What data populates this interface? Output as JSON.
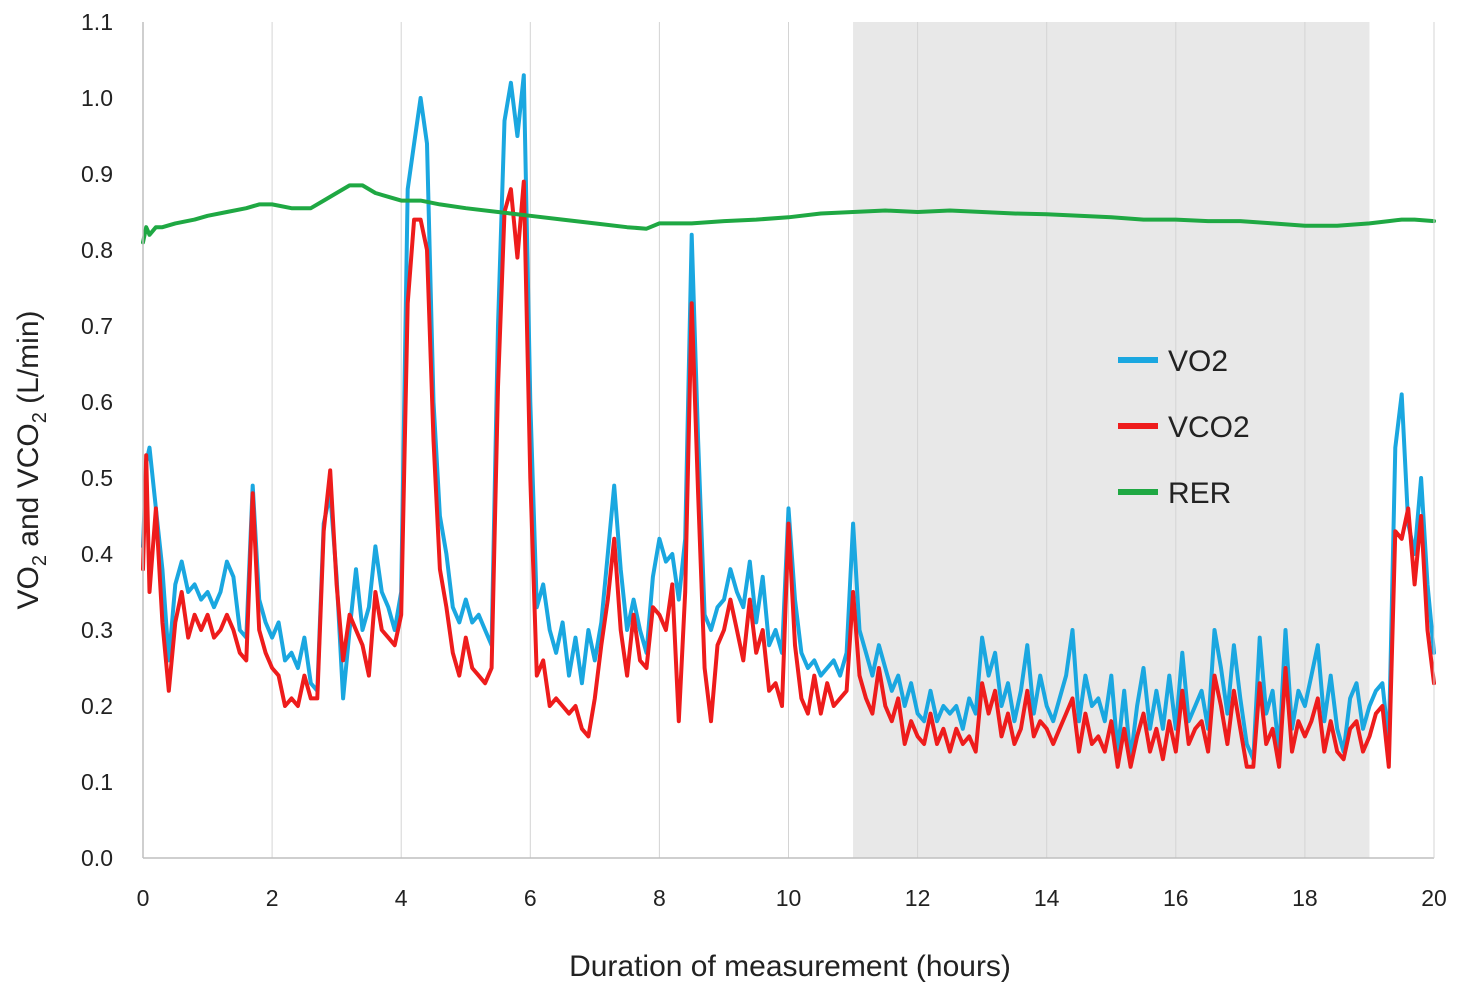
{
  "chart_data": {
    "type": "line",
    "title": "",
    "xlabel": "Duration of measurement (hours)",
    "ylabel_main": "VO",
    "ylabel_sub1": "2",
    "ylabel_mid": " and VCO",
    "ylabel_sub2": "2",
    "ylabel_end": " (L/min)",
    "xlim": [
      0,
      20
    ],
    "ylim": [
      0,
      1.1
    ],
    "x_ticks": [
      "0",
      "2",
      "4",
      "6",
      "8",
      "10",
      "12",
      "14",
      "16",
      "18",
      "20"
    ],
    "y_ticks": [
      "0.0",
      "0.1",
      "0.2",
      "0.3",
      "0.4",
      "0.5",
      "0.6",
      "0.7",
      "0.8",
      "0.9",
      "1.0",
      "1.1"
    ],
    "shaded_region": {
      "x_start": 11,
      "x_end": 19,
      "color": "#e8e8e8"
    },
    "legend_position": "right-center",
    "series": [
      {
        "name": "VO2",
        "color": "#1aa7e0",
        "x": [
          0,
          0.05,
          0.1,
          0.2,
          0.3,
          0.4,
          0.5,
          0.6,
          0.7,
          0.8,
          0.9,
          1.0,
          1.1,
          1.2,
          1.3,
          1.4,
          1.5,
          1.6,
          1.7,
          1.8,
          1.9,
          2.0,
          2.1,
          2.2,
          2.3,
          2.4,
          2.5,
          2.6,
          2.7,
          2.8,
          2.9,
          3.0,
          3.1,
          3.2,
          3.3,
          3.4,
          3.5,
          3.6,
          3.7,
          3.8,
          3.9,
          4.0,
          4.1,
          4.2,
          4.3,
          4.4,
          4.5,
          4.6,
          4.7,
          4.8,
          4.9,
          5.0,
          5.1,
          5.2,
          5.3,
          5.4,
          5.5,
          5.6,
          5.7,
          5.8,
          5.9,
          6.0,
          6.1,
          6.2,
          6.3,
          6.4,
          6.5,
          6.6,
          6.7,
          6.8,
          6.9,
          7.0,
          7.1,
          7.2,
          7.3,
          7.4,
          7.5,
          7.6,
          7.7,
          7.8,
          7.9,
          8.0,
          8.1,
          8.2,
          8.3,
          8.4,
          8.5,
          8.6,
          8.7,
          8.8,
          8.9,
          9.0,
          9.1,
          9.2,
          9.3,
          9.4,
          9.5,
          9.6,
          9.7,
          9.8,
          9.9,
          10.0,
          10.1,
          10.2,
          10.3,
          10.4,
          10.5,
          10.6,
          10.7,
          10.8,
          10.9,
          11.0,
          11.1,
          11.2,
          11.3,
          11.4,
          11.5,
          11.6,
          11.7,
          11.8,
          11.9,
          12.0,
          12.1,
          12.2,
          12.3,
          12.4,
          12.5,
          12.6,
          12.7,
          12.8,
          12.9,
          13.0,
          13.1,
          13.2,
          13.3,
          13.4,
          13.5,
          13.6,
          13.7,
          13.8,
          13.9,
          14.0,
          14.1,
          14.2,
          14.3,
          14.4,
          14.5,
          14.6,
          14.7,
          14.8,
          14.9,
          15.0,
          15.1,
          15.2,
          15.3,
          15.4,
          15.5,
          15.6,
          15.7,
          15.8,
          15.9,
          16.0,
          16.1,
          16.2,
          16.3,
          16.4,
          16.5,
          16.6,
          16.7,
          16.8,
          16.9,
          17.0,
          17.1,
          17.2,
          17.3,
          17.4,
          17.5,
          17.6,
          17.7,
          17.8,
          17.9,
          18.0,
          18.1,
          18.2,
          18.3,
          18.4,
          18.5,
          18.6,
          18.7,
          18.8,
          18.9,
          19.0,
          19.1,
          19.2,
          19.3,
          19.4,
          19.5,
          19.6,
          19.7,
          19.8,
          19.9,
          20.0
        ],
        "y": [
          0.41,
          0.52,
          0.54,
          0.46,
          0.38,
          0.26,
          0.36,
          0.39,
          0.35,
          0.36,
          0.34,
          0.35,
          0.33,
          0.35,
          0.39,
          0.37,
          0.3,
          0.29,
          0.49,
          0.34,
          0.31,
          0.29,
          0.31,
          0.26,
          0.27,
          0.25,
          0.29,
          0.23,
          0.22,
          0.44,
          0.48,
          0.37,
          0.21,
          0.3,
          0.38,
          0.3,
          0.33,
          0.41,
          0.35,
          0.33,
          0.3,
          0.35,
          0.88,
          0.94,
          1.0,
          0.94,
          0.6,
          0.45,
          0.4,
          0.33,
          0.31,
          0.34,
          0.31,
          0.32,
          0.3,
          0.28,
          0.7,
          0.97,
          1.02,
          0.95,
          1.03,
          0.6,
          0.33,
          0.36,
          0.3,
          0.27,
          0.31,
          0.24,
          0.29,
          0.23,
          0.3,
          0.26,
          0.31,
          0.4,
          0.49,
          0.38,
          0.3,
          0.34,
          0.3,
          0.27,
          0.37,
          0.42,
          0.39,
          0.4,
          0.34,
          0.42,
          0.82,
          0.55,
          0.32,
          0.3,
          0.33,
          0.34,
          0.38,
          0.35,
          0.33,
          0.39,
          0.31,
          0.37,
          0.28,
          0.3,
          0.27,
          0.46,
          0.34,
          0.27,
          0.25,
          0.26,
          0.24,
          0.25,
          0.26,
          0.24,
          0.27,
          0.44,
          0.3,
          0.27,
          0.24,
          0.28,
          0.25,
          0.22,
          0.24,
          0.2,
          0.23,
          0.19,
          0.18,
          0.22,
          0.18,
          0.2,
          0.19,
          0.2,
          0.17,
          0.21,
          0.19,
          0.29,
          0.24,
          0.27,
          0.2,
          0.23,
          0.18,
          0.22,
          0.28,
          0.19,
          0.24,
          0.2,
          0.18,
          0.21,
          0.24,
          0.3,
          0.18,
          0.24,
          0.2,
          0.21,
          0.18,
          0.24,
          0.14,
          0.22,
          0.13,
          0.2,
          0.25,
          0.17,
          0.22,
          0.17,
          0.24,
          0.17,
          0.27,
          0.18,
          0.2,
          0.22,
          0.17,
          0.3,
          0.25,
          0.19,
          0.28,
          0.21,
          0.15,
          0.13,
          0.29,
          0.19,
          0.22,
          0.14,
          0.3,
          0.17,
          0.22,
          0.2,
          0.24,
          0.28,
          0.18,
          0.24,
          0.17,
          0.14,
          0.21,
          0.23,
          0.17,
          0.2,
          0.22,
          0.23,
          0.15,
          0.54,
          0.61,
          0.44,
          0.4,
          0.5,
          0.36,
          0.27
        ]
      },
      {
        "name": "VCO2",
        "color": "#ee1c1c",
        "x": [
          0,
          0.05,
          0.1,
          0.2,
          0.3,
          0.4,
          0.5,
          0.6,
          0.7,
          0.8,
          0.9,
          1.0,
          1.1,
          1.2,
          1.3,
          1.4,
          1.5,
          1.6,
          1.7,
          1.8,
          1.9,
          2.0,
          2.1,
          2.2,
          2.3,
          2.4,
          2.5,
          2.6,
          2.7,
          2.8,
          2.9,
          3.0,
          3.1,
          3.2,
          3.3,
          3.4,
          3.5,
          3.6,
          3.7,
          3.8,
          3.9,
          4.0,
          4.1,
          4.2,
          4.3,
          4.4,
          4.5,
          4.6,
          4.7,
          4.8,
          4.9,
          5.0,
          5.1,
          5.2,
          5.3,
          5.4,
          5.5,
          5.6,
          5.7,
          5.8,
          5.9,
          6.0,
          6.1,
          6.2,
          6.3,
          6.4,
          6.5,
          6.6,
          6.7,
          6.8,
          6.9,
          7.0,
          7.1,
          7.2,
          7.3,
          7.4,
          7.5,
          7.6,
          7.7,
          7.8,
          7.9,
          8.0,
          8.1,
          8.2,
          8.3,
          8.4,
          8.5,
          8.6,
          8.7,
          8.8,
          8.9,
          9.0,
          9.1,
          9.2,
          9.3,
          9.4,
          9.5,
          9.6,
          9.7,
          9.8,
          9.9,
          10.0,
          10.1,
          10.2,
          10.3,
          10.4,
          10.5,
          10.6,
          10.7,
          10.8,
          10.9,
          11.0,
          11.1,
          11.2,
          11.3,
          11.4,
          11.5,
          11.6,
          11.7,
          11.8,
          11.9,
          12.0,
          12.1,
          12.2,
          12.3,
          12.4,
          12.5,
          12.6,
          12.7,
          12.8,
          12.9,
          13.0,
          13.1,
          13.2,
          13.3,
          13.4,
          13.5,
          13.6,
          13.7,
          13.8,
          13.9,
          14.0,
          14.1,
          14.2,
          14.3,
          14.4,
          14.5,
          14.6,
          14.7,
          14.8,
          14.9,
          15.0,
          15.1,
          15.2,
          15.3,
          15.4,
          15.5,
          15.6,
          15.7,
          15.8,
          15.9,
          16.0,
          16.1,
          16.2,
          16.3,
          16.4,
          16.5,
          16.6,
          16.7,
          16.8,
          16.9,
          17.0,
          17.1,
          17.2,
          17.3,
          17.4,
          17.5,
          17.6,
          17.7,
          17.8,
          17.9,
          18.0,
          18.1,
          18.2,
          18.3,
          18.4,
          18.5,
          18.6,
          18.7,
          18.8,
          18.9,
          19.0,
          19.1,
          19.2,
          19.3,
          19.4,
          19.5,
          19.6,
          19.7,
          19.8,
          19.9,
          20.0
        ],
        "y": [
          0.38,
          0.53,
          0.35,
          0.46,
          0.31,
          0.22,
          0.31,
          0.35,
          0.29,
          0.32,
          0.3,
          0.32,
          0.29,
          0.3,
          0.32,
          0.3,
          0.27,
          0.26,
          0.48,
          0.3,
          0.27,
          0.25,
          0.24,
          0.2,
          0.21,
          0.2,
          0.24,
          0.21,
          0.21,
          0.43,
          0.51,
          0.36,
          0.26,
          0.32,
          0.3,
          0.28,
          0.24,
          0.35,
          0.3,
          0.29,
          0.28,
          0.32,
          0.73,
          0.84,
          0.84,
          0.8,
          0.55,
          0.38,
          0.33,
          0.27,
          0.24,
          0.29,
          0.25,
          0.24,
          0.23,
          0.25,
          0.62,
          0.85,
          0.88,
          0.79,
          0.89,
          0.5,
          0.24,
          0.26,
          0.2,
          0.21,
          0.2,
          0.19,
          0.2,
          0.17,
          0.16,
          0.21,
          0.28,
          0.34,
          0.42,
          0.3,
          0.24,
          0.32,
          0.26,
          0.25,
          0.33,
          0.32,
          0.3,
          0.36,
          0.18,
          0.35,
          0.73,
          0.48,
          0.25,
          0.18,
          0.28,
          0.3,
          0.34,
          0.3,
          0.26,
          0.34,
          0.27,
          0.3,
          0.22,
          0.23,
          0.2,
          0.44,
          0.28,
          0.21,
          0.19,
          0.24,
          0.19,
          0.23,
          0.2,
          0.21,
          0.22,
          0.35,
          0.24,
          0.21,
          0.19,
          0.25,
          0.2,
          0.18,
          0.21,
          0.15,
          0.18,
          0.16,
          0.15,
          0.19,
          0.15,
          0.17,
          0.14,
          0.17,
          0.15,
          0.16,
          0.14,
          0.23,
          0.19,
          0.22,
          0.16,
          0.19,
          0.15,
          0.17,
          0.22,
          0.16,
          0.18,
          0.17,
          0.15,
          0.17,
          0.19,
          0.21,
          0.14,
          0.19,
          0.15,
          0.16,
          0.14,
          0.18,
          0.12,
          0.17,
          0.12,
          0.16,
          0.19,
          0.14,
          0.17,
          0.13,
          0.18,
          0.14,
          0.22,
          0.15,
          0.17,
          0.18,
          0.14,
          0.24,
          0.2,
          0.15,
          0.22,
          0.17,
          0.12,
          0.12,
          0.23,
          0.15,
          0.17,
          0.12,
          0.25,
          0.14,
          0.18,
          0.16,
          0.18,
          0.21,
          0.14,
          0.18,
          0.14,
          0.13,
          0.17,
          0.18,
          0.14,
          0.16,
          0.19,
          0.2,
          0.12,
          0.43,
          0.42,
          0.46,
          0.36,
          0.45,
          0.3,
          0.23
        ]
      },
      {
        "name": "RER",
        "color": "#1fa843",
        "x": [
          0,
          0.05,
          0.1,
          0.2,
          0.3,
          0.5,
          0.8,
          1.0,
          1.3,
          1.6,
          1.8,
          2.0,
          2.3,
          2.6,
          2.8,
          3.0,
          3.2,
          3.4,
          3.6,
          3.8,
          4.0,
          4.3,
          4.6,
          5.0,
          5.5,
          6.0,
          6.5,
          7.0,
          7.5,
          7.8,
          8.0,
          8.5,
          9.0,
          9.5,
          10.0,
          10.5,
          11.0,
          11.5,
          12.0,
          12.5,
          13.0,
          13.5,
          14.0,
          14.5,
          15.0,
          15.5,
          16.0,
          16.5,
          17.0,
          17.5,
          18.0,
          18.5,
          19.0,
          19.3,
          19.5,
          19.7,
          20.0
        ],
        "y": [
          0.81,
          0.83,
          0.82,
          0.83,
          0.83,
          0.835,
          0.84,
          0.845,
          0.85,
          0.855,
          0.86,
          0.86,
          0.855,
          0.855,
          0.865,
          0.875,
          0.885,
          0.885,
          0.875,
          0.87,
          0.865,
          0.865,
          0.86,
          0.855,
          0.85,
          0.845,
          0.84,
          0.835,
          0.83,
          0.828,
          0.835,
          0.835,
          0.838,
          0.84,
          0.843,
          0.848,
          0.85,
          0.852,
          0.85,
          0.852,
          0.85,
          0.848,
          0.847,
          0.845,
          0.843,
          0.84,
          0.84,
          0.838,
          0.838,
          0.835,
          0.832,
          0.832,
          0.835,
          0.838,
          0.84,
          0.84,
          0.838
        ]
      }
    ]
  }
}
